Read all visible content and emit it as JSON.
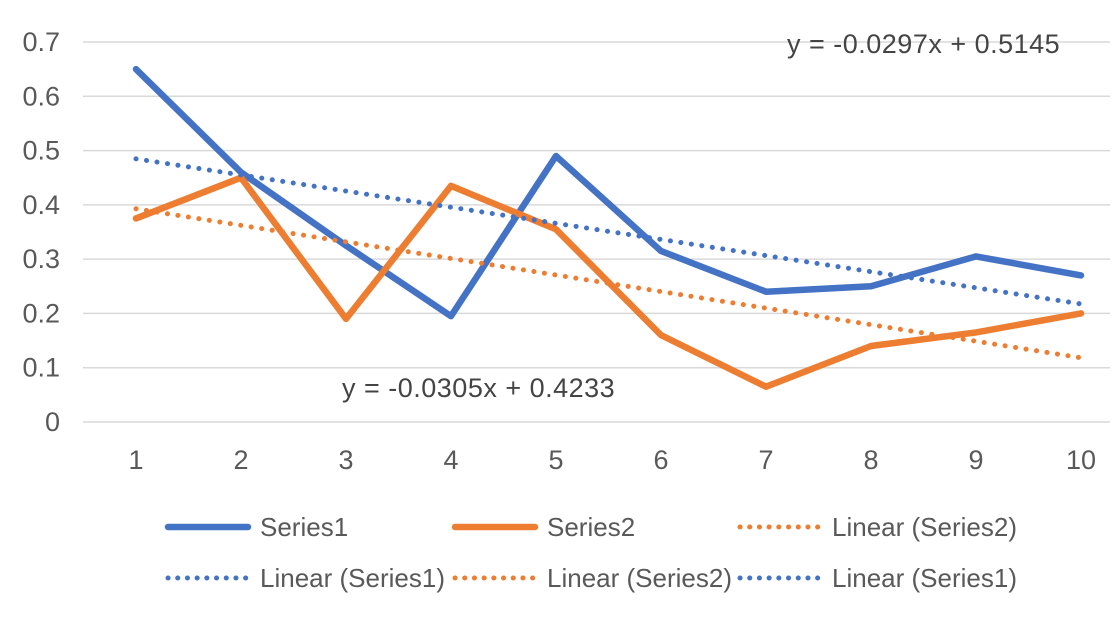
{
  "chart_data": {
    "type": "line",
    "x": [
      1,
      2,
      3,
      4,
      5,
      6,
      7,
      8,
      9,
      10
    ],
    "series": [
      {
        "name": "Series1",
        "color": "#4472C4",
        "style": "solid",
        "values": [
          0.65,
          0.46,
          0.325,
          0.195,
          0.49,
          0.315,
          0.24,
          0.25,
          0.305,
          0.27
        ]
      },
      {
        "name": "Series2",
        "color": "#ED7D31",
        "style": "solid",
        "values": [
          0.375,
          0.45,
          0.19,
          0.435,
          0.355,
          0.16,
          0.065,
          0.14,
          0.165,
          0.2
        ]
      }
    ],
    "trendlines": [
      {
        "name": "Linear (Series1)",
        "color": "#4472C4",
        "style": "dotted",
        "slope": -0.0297,
        "intercept": 0.5145,
        "equation": "y = -0.0297x + 0.5145"
      },
      {
        "name": "Linear (Series2)",
        "color": "#ED7D31",
        "style": "dotted",
        "slope": -0.0305,
        "intercept": 0.4233,
        "equation": "y = -0.0305x + 0.4233"
      }
    ],
    "y_ticks": [
      "0",
      "0.1",
      "0.2",
      "0.3",
      "0.4",
      "0.5",
      "0.6",
      "0.7"
    ],
    "y_tick_values": [
      0,
      0.1,
      0.2,
      0.3,
      0.4,
      0.5,
      0.6,
      0.7
    ],
    "ylim": [
      0,
      0.7
    ],
    "xlabel": "",
    "ylabel": "",
    "title": "",
    "grid": true,
    "legend_position": "bottom",
    "legend": [
      {
        "label": "Series1",
        "color": "#4472C4",
        "style": "solid"
      },
      {
        "label": "Series2",
        "color": "#ED7D31",
        "style": "solid"
      },
      {
        "label": "Linear (Series2)",
        "color": "#ED7D31",
        "style": "dotted"
      },
      {
        "label": "Linear (Series1)",
        "color": "#4472C4",
        "style": "dotted"
      },
      {
        "label": "Linear (Series2)",
        "color": "#ED7D31",
        "style": "dotted"
      },
      {
        "label": "Linear (Series1)",
        "color": "#4472C4",
        "style": "dotted"
      }
    ],
    "colors": {
      "series1": "#4472C4",
      "series2": "#ED7D31",
      "gridline": "#D9D9D9",
      "tick_text": "#595959",
      "annotation_text": "#444444",
      "background": "#FFFFFF"
    }
  }
}
